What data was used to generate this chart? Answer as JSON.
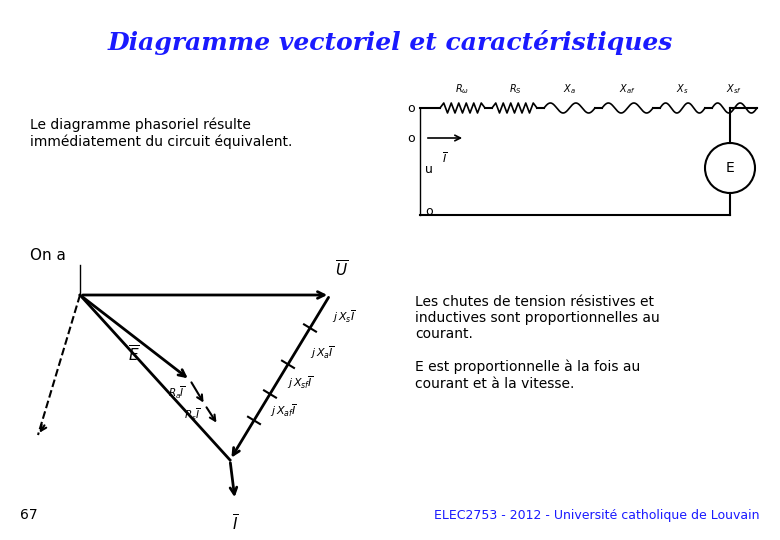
{
  "title": "Diagramme vectoriel et caractéristiques",
  "title_color": "#1a1aff",
  "title_fontsize": 18,
  "bg_color": "#ffffff",
  "text1": "Le diagramme phasoriel résulte\nimmédiatement du circuit équivalent.",
  "text_ona": "On a",
  "footer_text": "ELEC2753 - 2012 - Université catholique de Louvain",
  "footer_color": "#1a1aff",
  "page_num": "67",
  "text_right1": "Les chutes de tension résistives et\ninductives sont proportionnelles au\ncourant.",
  "text_right2": "E est proportionnelle à la fois au\ncourant et à la vitesse."
}
